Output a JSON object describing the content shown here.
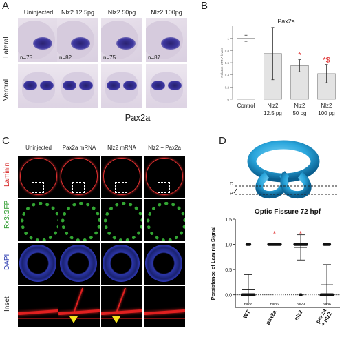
{
  "panel_a": {
    "label": "A",
    "columns": [
      "Uninjected",
      "Nlz2 12.5pg",
      "Nlz2 50pg",
      "Nlz2 100pg"
    ],
    "rows": [
      "Lateral",
      "Ventral"
    ],
    "n_values": [
      "n=75",
      "n=82",
      "n=75",
      "n=87"
    ],
    "gene": "Pax2a"
  },
  "panel_b": {
    "label": "B",
    "chart_data": {
      "type": "bar",
      "title": "Pax2a",
      "ylabel": "Relative mRNA levels",
      "categories": [
        "Control",
        "Nlz2 12.5 pg",
        "Nlz2 50 pg",
        "Nlz2 100 pg"
      ],
      "category_lines": [
        [
          "Control"
        ],
        [
          "Nlz2",
          "12.5 pg"
        ],
        [
          "Nlz2",
          "50 pg"
        ],
        [
          "Nlz2",
          "100 pg"
        ]
      ],
      "values": [
        1.0,
        0.75,
        0.55,
        0.42
      ],
      "errors": [
        0.05,
        0.43,
        0.1,
        0.15
      ],
      "significance": [
        "",
        "",
        "*",
        "*$"
      ],
      "yticks": [
        "0",
        "0.2",
        "0.4",
        "0.6",
        "0.8",
        "1"
      ],
      "ylim": [
        0,
        1.2
      ],
      "sig_color": "#e03030"
    }
  },
  "panel_c": {
    "label": "C",
    "columns": [
      "Uninjected",
      "Pax2a mRNA",
      "Nlz2 mRNA",
      "Nlz2 + Pax2a"
    ],
    "rows": [
      "Laminin",
      "Rx3:GFP",
      "DAPI",
      "Inset"
    ],
    "row_colors": [
      "#d42020",
      "#2a9a2a",
      "#2a3ab0",
      "#222222"
    ]
  },
  "panel_d": {
    "label": "D",
    "plane_labels": [
      "D",
      "P"
    ],
    "chart_data": {
      "type": "scatter",
      "title": "Optic Fissure 72 hpf",
      "ylabel": "Persistance of Laminin Signal",
      "categories": [
        "WT",
        "pax2a",
        "nlz2",
        "pax2a + nlz2"
      ],
      "means": [
        0.1,
        1.0,
        0.94,
        0.2
      ],
      "sd": [
        0.3,
        0.0,
        0.25,
        0.4
      ],
      "n_labels": [
        "n=38",
        "n=36",
        "n=29",
        "n=36"
      ],
      "significance": [
        "",
        "*",
        "*",
        ""
      ],
      "yticks": [
        "0.0",
        "0.5",
        "1.0",
        "1.5"
      ],
      "ylim": [
        -0.25,
        1.5
      ],
      "dot_counts_at_1": [
        4,
        36,
        27,
        7
      ],
      "dot_counts_at_0": [
        34,
        0,
        2,
        29
      ],
      "sig_color": "#e03030"
    }
  }
}
